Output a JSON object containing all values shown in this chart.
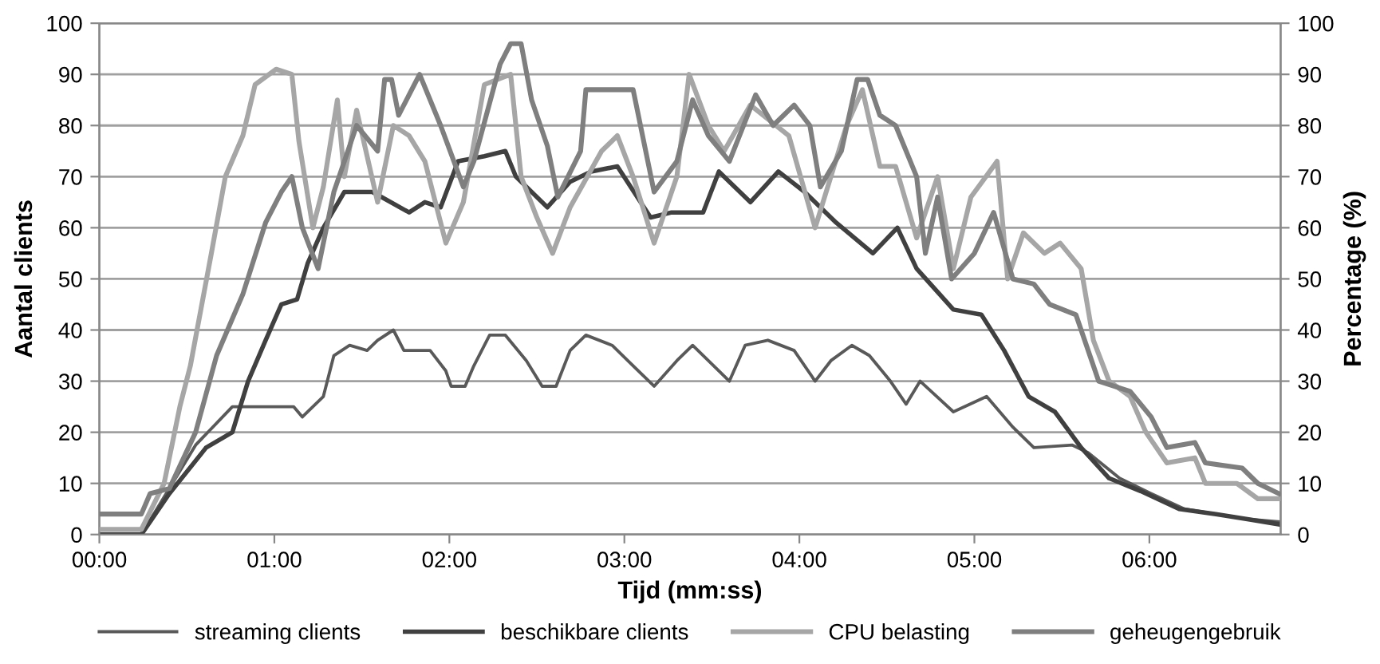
{
  "chart_data": {
    "type": "line",
    "xlabel": "Tijd (mm:ss)",
    "ylabel": "Aantal clients",
    "y2label": "Percentage (%)",
    "xlim": [
      0,
      6.75
    ],
    "xticks": [
      {
        "value": 0,
        "label": "00:00"
      },
      {
        "value": 1,
        "label": "01:00"
      },
      {
        "value": 2,
        "label": "02:00"
      },
      {
        "value": 3,
        "label": "03:00"
      },
      {
        "value": 4,
        "label": "04:00"
      },
      {
        "value": 5,
        "label": "05:00"
      },
      {
        "value": 6,
        "label": "06:00"
      }
    ],
    "ylim": [
      0,
      100
    ],
    "yticks": [
      0,
      10,
      20,
      30,
      40,
      50,
      60,
      70,
      80,
      90,
      100
    ],
    "y2lim": [
      0,
      100
    ],
    "y2ticks": [
      0,
      10,
      20,
      30,
      40,
      50,
      60,
      70,
      80,
      90,
      100
    ],
    "grid": "y",
    "legend": "bottom",
    "marker": "none",
    "line_style": "solid",
    "series": [
      {
        "name": "streaming clients",
        "color": "#595959",
        "x": [
          0,
          0.24,
          0.55,
          0.76,
          1.11,
          1.16,
          1.28,
          1.34,
          1.43,
          1.53,
          1.59,
          1.68,
          1.74,
          1.89,
          1.98,
          2.01,
          2.09,
          2.14,
          2.23,
          2.32,
          2.44,
          2.53,
          2.61,
          2.69,
          2.78,
          2.93,
          3.05,
          3.17,
          3.3,
          3.39,
          3.48,
          3.6,
          3.69,
          3.82,
          3.97,
          4.09,
          4.18,
          4.3,
          4.4,
          4.52,
          4.61,
          4.69,
          4.88,
          5.07,
          5.22,
          5.34,
          5.56,
          5.65,
          5.83,
          6.01,
          6.2,
          6.38,
          6.56,
          6.74
        ],
        "values": [
          0,
          0,
          17.5,
          25,
          25,
          23,
          27,
          35,
          37,
          36,
          38,
          40,
          36,
          36,
          32,
          29,
          29,
          33,
          39,
          39,
          34,
          29,
          29,
          36,
          39,
          37,
          33,
          29,
          34,
          37,
          34,
          30,
          37,
          38,
          36,
          30,
          34,
          37,
          35,
          30,
          25.5,
          30,
          24,
          27,
          21,
          17,
          17.5,
          16,
          11,
          8,
          5,
          4,
          3,
          2.5
        ]
      },
      {
        "name": "beschikbare clients",
        "color": "#404040",
        "x": [
          0,
          0.24,
          0.4,
          0.61,
          0.76,
          0.85,
          0.95,
          1.04,
          1.13,
          1.19,
          1.28,
          1.4,
          1.56,
          1.77,
          1.86,
          1.95,
          2.05,
          2.2,
          2.32,
          2.38,
          2.56,
          2.69,
          2.81,
          2.96,
          3.15,
          3.27,
          3.45,
          3.54,
          3.72,
          3.88,
          4.03,
          4.21,
          4.42,
          4.56,
          4.67,
          4.88,
          5.04,
          5.17,
          5.31,
          5.46,
          5.61,
          5.77,
          5.95,
          6.17,
          6.38,
          6.56,
          6.74
        ],
        "values": [
          0,
          0,
          8,
          17,
          20,
          30,
          38,
          45,
          46,
          53,
          60,
          67,
          67,
          63,
          65,
          64,
          73,
          74,
          75,
          70,
          64,
          69,
          71,
          72,
          62,
          63,
          63,
          71,
          65,
          71,
          67,
          61,
          55,
          60,
          52,
          44,
          43,
          36,
          27,
          24,
          17,
          11,
          8.5,
          5,
          4,
          3,
          2
        ]
      },
      {
        "name": "CPU belasting",
        "color": "#a6a6a6",
        "axis": "y2",
        "x": [
          0,
          0.24,
          0.37,
          0.46,
          0.52,
          0.64,
          0.72,
          0.82,
          0.89,
          1.01,
          1.1,
          1.14,
          1.22,
          1.28,
          1.36,
          1.4,
          1.47,
          1.59,
          1.68,
          1.77,
          1.86,
          1.98,
          2.08,
          2.2,
          2.35,
          2.41,
          2.5,
          2.59,
          2.69,
          2.87,
          2.96,
          3.05,
          3.17,
          3.3,
          3.37,
          3.48,
          3.57,
          3.72,
          3.94,
          4.09,
          4.27,
          4.36,
          4.46,
          4.55,
          4.67,
          4.79,
          4.88,
          4.98,
          5.13,
          5.19,
          5.28,
          5.4,
          5.49,
          5.61,
          5.68,
          5.77,
          5.89,
          5.98,
          6.1,
          6.26,
          6.32,
          6.5,
          6.62,
          6.74
        ],
        "values": [
          1,
          1,
          10,
          25,
          33,
          55,
          70,
          78,
          88,
          91,
          90,
          77,
          60,
          68,
          85,
          70,
          83,
          65,
          80,
          78,
          73,
          57,
          65,
          88,
          90,
          70,
          62,
          55,
          64,
          75,
          78,
          70,
          57,
          70,
          90,
          80,
          75,
          84,
          78,
          60,
          80,
          87,
          72,
          72,
          58,
          70,
          52,
          66,
          73,
          50,
          59,
          55,
          57,
          52,
          38,
          30,
          27,
          20,
          14,
          15,
          10,
          10,
          7,
          7
        ]
      },
      {
        "name": "geheugengebruik",
        "color": "#7f7f7f",
        "axis": "y2",
        "x": [
          0,
          0.24,
          0.29,
          0.4,
          0.55,
          0.67,
          0.82,
          0.95,
          1.04,
          1.1,
          1.16,
          1.25,
          1.34,
          1.47,
          1.59,
          1.63,
          1.67,
          1.71,
          1.83,
          1.95,
          2.08,
          2.14,
          2.29,
          2.35,
          2.41,
          2.47,
          2.56,
          2.62,
          2.75,
          2.78,
          2.93,
          3.05,
          3.17,
          3.3,
          3.39,
          3.48,
          3.6,
          3.75,
          3.85,
          3.97,
          4.06,
          4.12,
          4.24,
          4.33,
          4.39,
          4.46,
          4.55,
          4.67,
          4.72,
          4.79,
          4.87,
          5.0,
          5.11,
          5.22,
          5.34,
          5.43,
          5.58,
          5.71,
          5.89,
          6.01,
          6.1,
          6.26,
          6.32,
          6.53,
          6.62,
          6.74
        ],
        "values": [
          4,
          4,
          8,
          9,
          20,
          35,
          47,
          61,
          67,
          70,
          60,
          52,
          67,
          80,
          75,
          89,
          89,
          82,
          90,
          80,
          68,
          73,
          92,
          96,
          96,
          85,
          76,
          66,
          75,
          87,
          87,
          87,
          67,
          73,
          85,
          78,
          73,
          86,
          80,
          84,
          80,
          68,
          75,
          89,
          89,
          82,
          80,
          70,
          55,
          66,
          50,
          55,
          63,
          50,
          49,
          45,
          43,
          30,
          28,
          23,
          17,
          18,
          14,
          13,
          10,
          8
        ]
      }
    ]
  }
}
